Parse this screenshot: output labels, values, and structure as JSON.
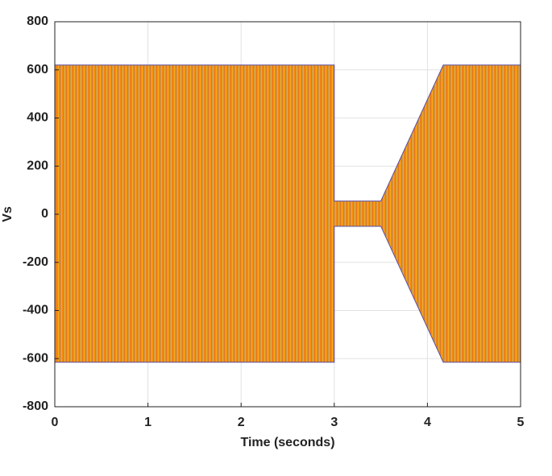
{
  "chart_data": {
    "type": "area",
    "x_label": "Time (seconds)",
    "y_label": "Vs",
    "x": [
      0,
      3,
      3,
      3.5,
      4.17,
      5
    ],
    "upper": [
      620,
      620,
      55,
      55,
      620,
      620
    ],
    "lower": [
      -615,
      -615,
      -50,
      -50,
      -615,
      -615
    ],
    "xlim": [
      0,
      5
    ],
    "xticks": [
      0,
      1,
      2,
      3,
      4,
      5
    ],
    "ylim": [
      -800,
      800
    ],
    "yticks": [
      -800,
      -600,
      -400,
      -200,
      0,
      200,
      400,
      600,
      800
    ],
    "grid": true
  }
}
